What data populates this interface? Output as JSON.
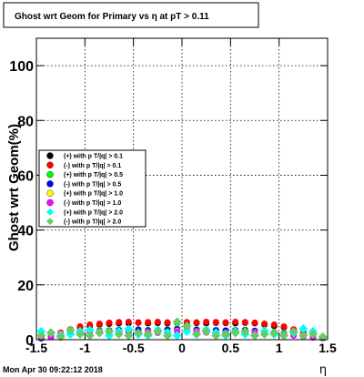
{
  "chart_data": {
    "type": "scatter",
    "title": "Ghost wrt Geom for Primary vs   η at pT > 0.11",
    "xlabel": "η",
    "ylabel": "Ghost wrt Geom(%)",
    "xlim": [
      -1.5,
      1.5
    ],
    "ylim": [
      0,
      110
    ],
    "x_ticks": [
      "-1.5",
      "-1",
      "-0.5",
      "0",
      "0.5",
      "1",
      "1.5"
    ],
    "x_tick_values": [
      -1.5,
      -1,
      -0.5,
      0,
      0.5,
      1,
      1.5
    ],
    "y_ticks": [
      "0",
      "20",
      "40",
      "60",
      "80",
      "100"
    ],
    "y_tick_values": [
      0,
      20,
      40,
      60,
      80,
      100
    ],
    "grid": true,
    "legend_position": "center-left",
    "series": [
      {
        "name": "(+) with p T/|q| > 0.1",
        "color": "#000000",
        "x": [
          -1.45,
          -1.35,
          -1.25,
          -1.15,
          -1.05,
          -0.95,
          -0.85,
          -0.75,
          -0.65,
          -0.55,
          -0.45,
          -0.35,
          -0.25,
          -0.15,
          -0.05,
          0.05,
          0.15,
          0.25,
          0.35,
          0.45,
          0.55,
          0.65,
          0.75,
          0.85,
          0.95,
          1.05,
          1.15,
          1.25,
          1.35,
          1.45
        ],
        "y": [
          0.5,
          1.5,
          2.5,
          3.5,
          4.5,
          5.0,
          5.5,
          5.8,
          6.0,
          6.0,
          6.2,
          6.0,
          6.1,
          6.0,
          6.2,
          6.0,
          6.1,
          6.0,
          6.2,
          6.1,
          6.0,
          6.2,
          6.0,
          5.5,
          5.0,
          4.5,
          3.5,
          2.5,
          1.5,
          0.5
        ]
      },
      {
        "name": "(-) with p T/|q| > 0.1",
        "color": "#ff0000",
        "x": [
          -1.45,
          -1.35,
          -1.25,
          -1.15,
          -1.05,
          -0.95,
          -0.85,
          -0.75,
          -0.65,
          -0.55,
          -0.45,
          -0.35,
          -0.25,
          -0.15,
          -0.05,
          0.05,
          0.15,
          0.25,
          0.35,
          0.45,
          0.55,
          0.65,
          0.75,
          0.85,
          0.95,
          1.05,
          1.15,
          1.25,
          1.35,
          1.45
        ],
        "y": [
          0.5,
          1.5,
          2.5,
          3.8,
          4.8,
          5.5,
          5.8,
          6.2,
          6.4,
          6.5,
          6.3,
          6.4,
          6.5,
          6.3,
          6.5,
          6.4,
          6.3,
          6.5,
          6.4,
          6.3,
          6.5,
          6.4,
          6.2,
          5.8,
          5.5,
          4.8,
          3.8,
          2.5,
          1.5,
          0.5
        ]
      },
      {
        "name": "(+) with p T/|q| > 0.5",
        "color": "#00ff00",
        "x": [
          -1.45,
          -1.35,
          -1.25,
          -1.15,
          -1.05,
          -0.95,
          -0.85,
          -0.75,
          -0.65,
          -0.55,
          -0.45,
          -0.35,
          -0.25,
          -0.15,
          -0.05,
          0.05,
          0.15,
          0.25,
          0.35,
          0.45,
          0.55,
          0.65,
          0.75,
          0.85,
          0.95,
          1.05,
          1.15,
          1.25,
          1.35,
          1.45
        ],
        "y": [
          0.5,
          1.2,
          2.0,
          2.5,
          3.0,
          3.2,
          3.5,
          3.4,
          3.6,
          3.5,
          3.8,
          3.5,
          3.6,
          3.8,
          4.2,
          4.5,
          3.8,
          3.6,
          3.5,
          3.4,
          3.5,
          3.6,
          3.2,
          3.0,
          2.8,
          2.5,
          2.0,
          1.5,
          1.0,
          0.5
        ]
      },
      {
        "name": "(-) with p T/|q| > 0.5",
        "color": "#0000ff",
        "x": [
          -1.45,
          -1.35,
          -1.25,
          -1.15,
          -1.05,
          -0.95,
          -0.85,
          -0.75,
          -0.65,
          -0.55,
          -0.45,
          -0.35,
          -0.25,
          -0.15,
          -0.05,
          0.05,
          0.15,
          0.25,
          0.35,
          0.45,
          0.55,
          0.65,
          0.75,
          0.85,
          0.95,
          1.05,
          1.15,
          1.25,
          1.35,
          1.45
        ],
        "y": [
          0.5,
          1.0,
          1.8,
          2.4,
          2.8,
          3.0,
          3.2,
          3.3,
          3.5,
          3.4,
          3.6,
          3.4,
          3.5,
          3.6,
          3.8,
          3.9,
          3.6,
          3.5,
          3.4,
          3.3,
          3.4,
          3.5,
          3.2,
          3.0,
          2.6,
          2.2,
          1.8,
          1.2,
          0.8,
          0.5
        ]
      },
      {
        "name": "(+) with p T/|q| > 1.0",
        "color": "#ffff00",
        "x": [
          -1.45,
          -1.35,
          -1.25,
          -1.15,
          -1.05,
          -0.95,
          -0.85,
          -0.75,
          -0.65,
          -0.55,
          -0.45,
          -0.35,
          -0.25,
          -0.15,
          -0.05,
          0.05,
          0.15,
          0.25,
          0.35,
          0.45,
          0.55,
          0.65,
          0.75,
          0.85,
          0.95,
          1.05,
          1.15,
          1.25,
          1.35,
          1.45
        ],
        "y": [
          1.0,
          1.5,
          2.0,
          2.2,
          2.5,
          2.8,
          3.0,
          2.6,
          2.8,
          3.0,
          2.5,
          2.8,
          2.6,
          2.8,
          3.2,
          3.5,
          3.0,
          2.8,
          2.6,
          2.5,
          2.8,
          3.0,
          2.6,
          2.4,
          2.2,
          2.0,
          1.8,
          1.5,
          1.2,
          0.8
        ]
      },
      {
        "name": "(-) with p T/|q| > 1.0",
        "color": "#ff00ff",
        "x": [
          -1.45,
          -1.35,
          -1.25,
          -1.15,
          -1.05,
          -0.95,
          -0.85,
          -0.75,
          -0.65,
          -0.55,
          -0.45,
          -0.35,
          -0.25,
          -0.15,
          -0.05,
          0.05,
          0.15,
          0.25,
          0.35,
          0.45,
          0.55,
          0.65,
          0.75,
          0.85,
          0.95,
          1.05,
          1.15,
          1.25,
          1.35,
          1.45
        ],
        "y": [
          0.8,
          1.2,
          1.8,
          2.0,
          2.4,
          2.6,
          2.8,
          2.5,
          2.6,
          2.8,
          2.4,
          2.6,
          2.5,
          2.6,
          3.0,
          3.2,
          2.8,
          2.6,
          2.5,
          2.4,
          2.6,
          2.8,
          2.5,
          2.2,
          2.0,
          1.8,
          1.5,
          1.2,
          0.8,
          0.5
        ]
      },
      {
        "name": "(+) with p T/|q| > 2.0",
        "color": "#00ffff",
        "x": [
          -1.45,
          -1.35,
          -1.25,
          -1.15,
          -1.05,
          -0.95,
          -0.85,
          -0.75,
          -0.65,
          -0.55,
          -0.45,
          -0.35,
          -0.25,
          -0.15,
          -0.05,
          0.05,
          0.15,
          0.25,
          0.35,
          0.45,
          0.55,
          0.65,
          0.75,
          0.85,
          0.95,
          1.05,
          1.15,
          1.25,
          1.35,
          1.45
        ],
        "y": [
          3.0,
          2.5,
          1.5,
          2.0,
          3.0,
          3.5,
          2.5,
          1.5,
          3.0,
          3.8,
          2.0,
          1.5,
          3.5,
          2.5,
          1.5,
          3.0,
          2.0,
          3.5,
          2.5,
          1.5,
          3.0,
          2.0,
          1.5,
          3.2,
          2.0,
          1.5,
          2.5,
          4.0,
          3.0,
          1.0
        ]
      },
      {
        "name": "(-) with p T/|q| > 2.0",
        "color": "#66cc66",
        "x": [
          -1.45,
          -1.35,
          -1.25,
          -1.15,
          -1.05,
          -0.95,
          -0.85,
          -0.75,
          -0.65,
          -0.55,
          -0.45,
          -0.35,
          -0.25,
          -0.15,
          -0.05,
          0.05,
          0.15,
          0.25,
          0.35,
          0.45,
          0.55,
          0.65,
          0.75,
          0.85,
          0.95,
          1.05,
          1.15,
          1.25,
          1.35,
          1.45
        ],
        "y": [
          1.5,
          2.5,
          1.0,
          3.5,
          2.0,
          1.5,
          2.5,
          3.0,
          2.0,
          1.5,
          2.5,
          2.0,
          3.0,
          1.5,
          6.5,
          5.0,
          2.0,
          3.0,
          1.5,
          2.0,
          2.5,
          3.0,
          1.5,
          2.0,
          2.5,
          1.5,
          3.0,
          1.5,
          2.0,
          1.0
        ]
      }
    ]
  },
  "footer": {
    "timestamp": "Mon Apr 30 09:22:12 2018"
  }
}
